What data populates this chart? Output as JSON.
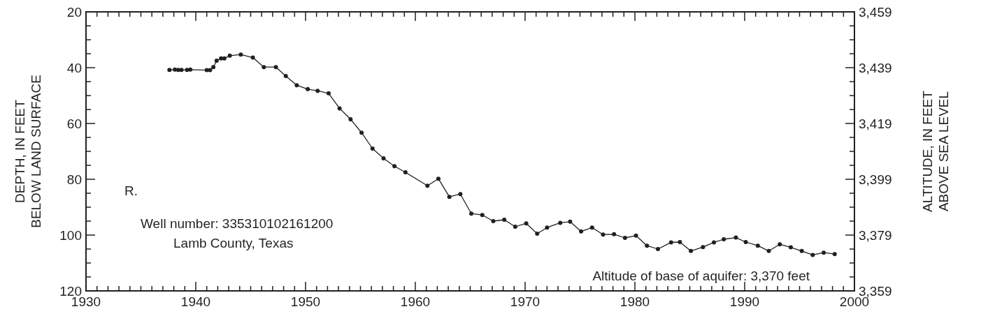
{
  "chart_data": {
    "type": "line",
    "ylabel": "DEPTH, IN FEET\nBELOW LAND SURFACE",
    "y2label": "ALTITUDE, IN FEET\nABOVE SEA LEVEL",
    "annotations": [
      "R.",
      "Well number: 335310102161200",
      "Lamb County, Texas",
      "Altitude of base of aquifer: 3,370 feet"
    ],
    "marker": "circle",
    "line_style": "solid",
    "grid": false,
    "xlim": [
      1930,
      2000
    ],
    "ylim": [
      120,
      20
    ],
    "y2lim": [
      3359,
      3459
    ],
    "xticks": [
      1930,
      {
        "value": 1931,
        "label": null
      },
      {
        "value": 1932,
        "label": null
      },
      {
        "value": 1933,
        "label": null
      },
      {
        "value": 1934,
        "label": null
      },
      {
        "value": 1935,
        "label": null
      },
      {
        "value": 1936,
        "label": null
      },
      {
        "value": 1937,
        "label": null
      },
      {
        "value": 1938,
        "label": null
      },
      {
        "value": 1939,
        "label": null
      },
      1940,
      {
        "value": 1941,
        "label": null
      },
      {
        "value": 1942,
        "label": null
      },
      {
        "value": 1943,
        "label": null
      },
      {
        "value": 1944,
        "label": null
      },
      {
        "value": 1945,
        "label": null
      },
      {
        "value": 1946,
        "label": null
      },
      {
        "value": 1947,
        "label": null
      },
      {
        "value": 1948,
        "label": null
      },
      {
        "value": 1949,
        "label": null
      },
      1950,
      {
        "value": 1951,
        "label": null
      },
      {
        "value": 1952,
        "label": null
      },
      {
        "value": 1953,
        "label": null
      },
      {
        "value": 1954,
        "label": null
      },
      {
        "value": 1955,
        "label": null
      },
      {
        "value": 1956,
        "label": null
      },
      {
        "value": 1957,
        "label": null
      },
      {
        "value": 1958,
        "label": null
      },
      {
        "value": 1959,
        "label": null
      },
      1960,
      {
        "value": 1961,
        "label": null
      },
      {
        "value": 1962,
        "label": null
      },
      {
        "value": 1963,
        "label": null
      },
      {
        "value": 1964,
        "label": null
      },
      {
        "value": 1965,
        "label": null
      },
      {
        "value": 1966,
        "label": null
      },
      {
        "value": 1967,
        "label": null
      },
      {
        "value": 1968,
        "label": null
      },
      {
        "value": 1969,
        "label": null
      },
      1970,
      {
        "value": 1971,
        "label": null
      },
      {
        "value": 1972,
        "label": null
      },
      {
        "value": 1973,
        "label": null
      },
      {
        "value": 1974,
        "label": null
      },
      {
        "value": 1975,
        "label": null
      },
      {
        "value": 1976,
        "label": null
      },
      {
        "value": 1977,
        "label": null
      },
      {
        "value": 1978,
        "label": null
      },
      {
        "value": 1979,
        "label": null
      },
      1980,
      {
        "value": 1981,
        "label": null
      },
      {
        "value": 1982,
        "label": null
      },
      {
        "value": 1983,
        "label": null
      },
      {
        "value": 1984,
        "label": null
      },
      {
        "value": 1985,
        "label": null
      },
      {
        "value": 1986,
        "label": null
      },
      {
        "value": 1987,
        "label": null
      },
      {
        "value": 1988,
        "label": null
      },
      {
        "value": 1989,
        "label": null
      },
      1990,
      {
        "value": 1991,
        "label": null
      },
      {
        "value": 1992,
        "label": null
      },
      {
        "value": 1993,
        "label": null
      },
      {
        "value": 1994,
        "label": null
      },
      {
        "value": 1995,
        "label": null
      },
      {
        "value": 1996,
        "label": null
      },
      {
        "value": 1997,
        "label": null
      },
      {
        "value": 1998,
        "label": null
      },
      {
        "value": 1999,
        "label": null
      },
      2000
    ],
    "yticks": [
      20,
      {
        "value": 25,
        "label": null
      },
      {
        "value": 30,
        "label": null
      },
      {
        "value": 35,
        "label": null
      },
      40,
      {
        "value": 45,
        "label": null
      },
      {
        "value": 50,
        "label": null
      },
      {
        "value": 55,
        "label": null
      },
      60,
      {
        "value": 65,
        "label": null
      },
      {
        "value": 70,
        "label": null
      },
      {
        "value": 75,
        "label": null
      },
      80,
      {
        "value": 85,
        "label": null
      },
      {
        "value": 90,
        "label": null
      },
      {
        "value": 95,
        "label": null
      },
      100,
      {
        "value": 105,
        "label": null
      },
      {
        "value": 110,
        "label": null
      },
      {
        "value": 115,
        "label": null
      },
      120
    ],
    "y2ticks": [
      {
        "value": 3459,
        "label": "3,459"
      },
      {
        "value": 3454,
        "label": null
      },
      {
        "value": 3449,
        "label": null
      },
      {
        "value": 3444,
        "label": null
      },
      {
        "value": 3439,
        "label": "3,439"
      },
      {
        "value": 3434,
        "label": null
      },
      {
        "value": 3429,
        "label": null
      },
      {
        "value": 3424,
        "label": null
      },
      {
        "value": 3419,
        "label": "3,419"
      },
      {
        "value": 3414,
        "label": null
      },
      {
        "value": 3409,
        "label": null
      },
      {
        "value": 3404,
        "label": null
      },
      {
        "value": 3399,
        "label": "3,399"
      },
      {
        "value": 3394,
        "label": null
      },
      {
        "value": 3389,
        "label": null
      },
      {
        "value": 3384,
        "label": null
      },
      {
        "value": 3379,
        "label": "3,379"
      },
      {
        "value": 3374,
        "label": null
      },
      {
        "value": 3369,
        "label": null
      },
      {
        "value": 3364,
        "label": null
      },
      {
        "value": 3359,
        "label": "3,359"
      }
    ],
    "series": [
      {
        "color": "#231f20",
        "x": [
          1937.6,
          1938.1,
          1938.4,
          1938.7,
          1939.2,
          1939.5,
          1941.0,
          1941.3,
          1941.6,
          1941.9,
          1942.3,
          1942.6,
          1943.1,
          1944.1,
          1945.2,
          1946.2,
          1947.3,
          1948.2,
          1949.2,
          1950.2,
          1951.1,
          1952.1,
          1953.1,
          1954.1,
          1955.1,
          1956.1,
          1957.1,
          1958.1,
          1959.1,
          1961.1,
          1962.1,
          1963.1,
          1964.1,
          1965.1,
          1966.1,
          1967.1,
          1968.1,
          1969.1,
          1970.1,
          1971.1,
          1972.0,
          1973.2,
          1974.1,
          1975.1,
          1976.1,
          1977.1,
          1978.1,
          1979.1,
          1980.1,
          1981.1,
          1982.1,
          1983.3,
          1984.1,
          1985.1,
          1986.2,
          1987.2,
          1988.1,
          1989.2,
          1990.1,
          1991.2,
          1992.2,
          1993.2,
          1994.2,
          1995.2,
          1996.2,
          1997.2,
          1998.2
        ],
        "values": [
          40.8,
          40.7,
          40.8,
          40.8,
          40.8,
          40.7,
          40.9,
          40.9,
          39.8,
          37.5,
          36.7,
          36.7,
          35.7,
          35.3,
          36.4,
          39.8,
          39.8,
          43,
          46.3,
          47.7,
          48.3,
          49.2,
          54.6,
          58.5,
          63.3,
          69,
          72.5,
          75.3,
          77.5,
          82.3,
          79.8,
          86.3,
          85.3,
          92.3,
          92.8,
          95,
          94.5,
          97,
          95.8,
          99.5,
          97.3,
          95.6,
          95.2,
          98.7,
          97.3,
          99.8,
          99.7,
          101,
          100.2,
          103.8,
          105,
          102.6,
          102.5,
          105.7,
          104.3,
          102.6,
          101.5,
          100.9,
          102.5,
          103.8,
          105.7,
          103.3,
          104.4,
          105.7,
          107.1,
          106.3,
          106.8
        ]
      }
    ]
  }
}
